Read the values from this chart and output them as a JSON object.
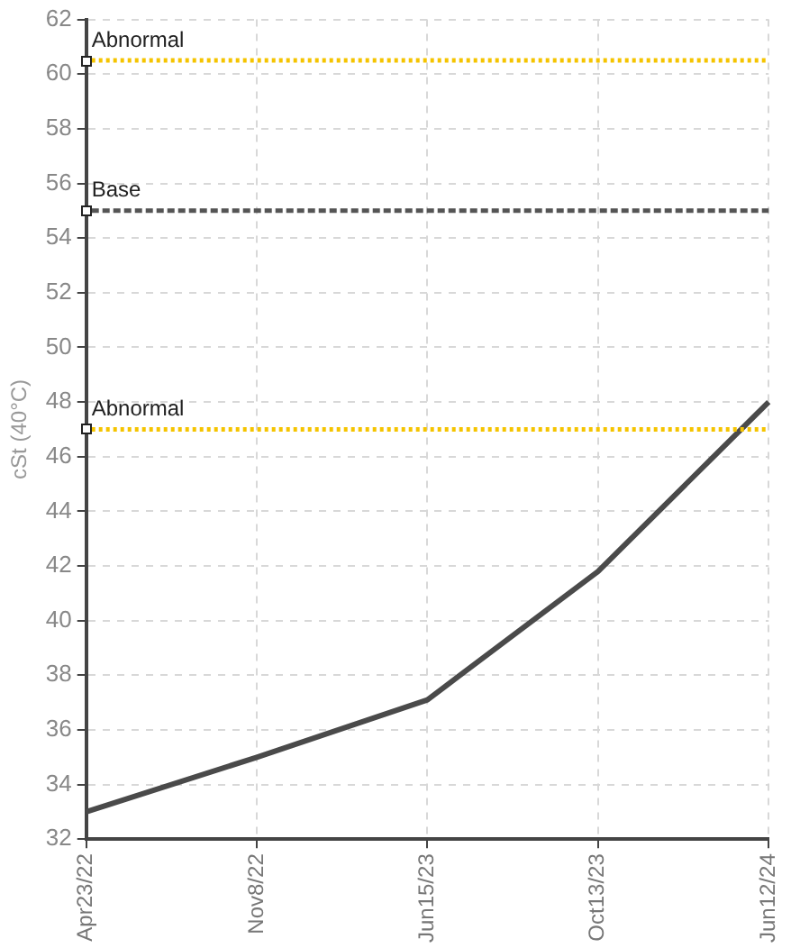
{
  "chart_data": {
    "type": "line",
    "ylabel": "cSt (40°C)",
    "categories": [
      "Apr23/22",
      "Nov8/22",
      "Jun15/23",
      "Oct13/23",
      "Jun12/24"
    ],
    "series": [
      {
        "color": "#4a4a4a",
        "values": [
          33,
          35,
          37.1,
          41.8,
          48
        ]
      }
    ],
    "ylim": [
      32,
      62
    ],
    "yticks": [
      32,
      34,
      36,
      38,
      40,
      42,
      44,
      46,
      48,
      50,
      52,
      54,
      56,
      58,
      60,
      62
    ],
    "grid": true,
    "ref_lines": [
      {
        "axis": "y",
        "value": 60.5,
        "label": "Abnormal",
        "color": "#f5c400",
        "line_style": "dotted"
      },
      {
        "axis": "y",
        "value": 55,
        "label": "Base",
        "color": "#555555",
        "line_style": "dashed"
      },
      {
        "axis": "y",
        "value": 47,
        "label": "Abnormal",
        "color": "#f5c400",
        "line_style": "dotted"
      }
    ]
  }
}
